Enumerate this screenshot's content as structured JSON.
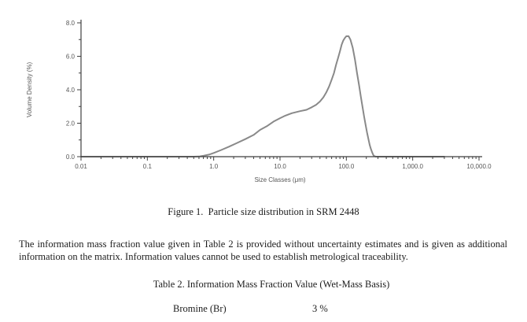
{
  "figure": {
    "caption": "Figure 1.  Particle size distribution in SRM 2448"
  },
  "paragraph": "The information mass fraction value given in Table 2 is provided without uncertainty estimates and is given as additional information on the matrix.  Information values cannot be used to establish metrological traceability.",
  "table2": {
    "title": "Table 2. Information Mass Fraction Value (Wet-Mass Basis)",
    "rows": [
      {
        "analyte": "Bromine (Br)",
        "value": "3 %"
      }
    ]
  },
  "chart_data": {
    "type": "line",
    "title": "",
    "xlabel": "Size Classes (μm)",
    "ylabel": "Volume Density (%)",
    "xscale": "log",
    "xlim": [
      0.01,
      10000
    ],
    "ylim": [
      0,
      8
    ],
    "x_tick_values": [
      0.01,
      0.1,
      1,
      10,
      100,
      1000,
      10000
    ],
    "x_tick_labels": [
      "0.01",
      "0.1",
      "1.0",
      "10.0",
      "100.0",
      "1,000.0",
      "10,000.0"
    ],
    "y_tick_values": [
      0,
      2,
      4,
      6,
      8
    ],
    "y_tick_labels": [
      "0.0",
      "2.0",
      "4.0",
      "6.0",
      "8.0"
    ],
    "y_minor_tick_values": [
      1,
      3,
      5,
      7
    ],
    "grid": false,
    "legend": "none",
    "line_color": "#898989",
    "axis_color": "#3f3f3f",
    "label_color": "#565656",
    "series": [
      {
        "name": "volume-density",
        "points": [
          [
            0.01,
            0
          ],
          [
            0.3,
            0
          ],
          [
            0.5,
            0
          ],
          [
            0.6,
            0.01
          ],
          [
            0.7,
            0.05
          ],
          [
            0.85,
            0.12
          ],
          [
            1.0,
            0.22
          ],
          [
            1.3,
            0.4
          ],
          [
            1.7,
            0.6
          ],
          [
            2.2,
            0.8
          ],
          [
            3,
            1.05
          ],
          [
            4,
            1.3
          ],
          [
            5,
            1.6
          ],
          [
            6.5,
            1.85
          ],
          [
            8,
            2.1
          ],
          [
            10,
            2.3
          ],
          [
            12,
            2.45
          ],
          [
            15,
            2.6
          ],
          [
            20,
            2.72
          ],
          [
            25,
            2.8
          ],
          [
            30,
            2.95
          ],
          [
            35,
            3.1
          ],
          [
            40,
            3.3
          ],
          [
            45,
            3.55
          ],
          [
            50,
            3.85
          ],
          [
            55,
            4.2
          ],
          [
            60,
            4.6
          ],
          [
            65,
            5.0
          ],
          [
            70,
            5.5
          ],
          [
            75,
            5.9
          ],
          [
            80,
            6.3
          ],
          [
            85,
            6.7
          ],
          [
            90,
            6.95
          ],
          [
            95,
            7.1
          ],
          [
            100,
            7.2
          ],
          [
            108,
            7.2
          ],
          [
            115,
            7.0
          ],
          [
            125,
            6.5
          ],
          [
            135,
            5.8
          ],
          [
            145,
            5.0
          ],
          [
            155,
            4.3
          ],
          [
            165,
            3.6
          ],
          [
            175,
            3.0
          ],
          [
            185,
            2.4
          ],
          [
            195,
            1.9
          ],
          [
            205,
            1.45
          ],
          [
            215,
            1.05
          ],
          [
            225,
            0.7
          ],
          [
            235,
            0.45
          ],
          [
            245,
            0.25
          ],
          [
            255,
            0.1
          ],
          [
            265,
            0.03
          ],
          [
            280,
            0
          ],
          [
            3000,
            0
          ]
        ]
      }
    ]
  }
}
